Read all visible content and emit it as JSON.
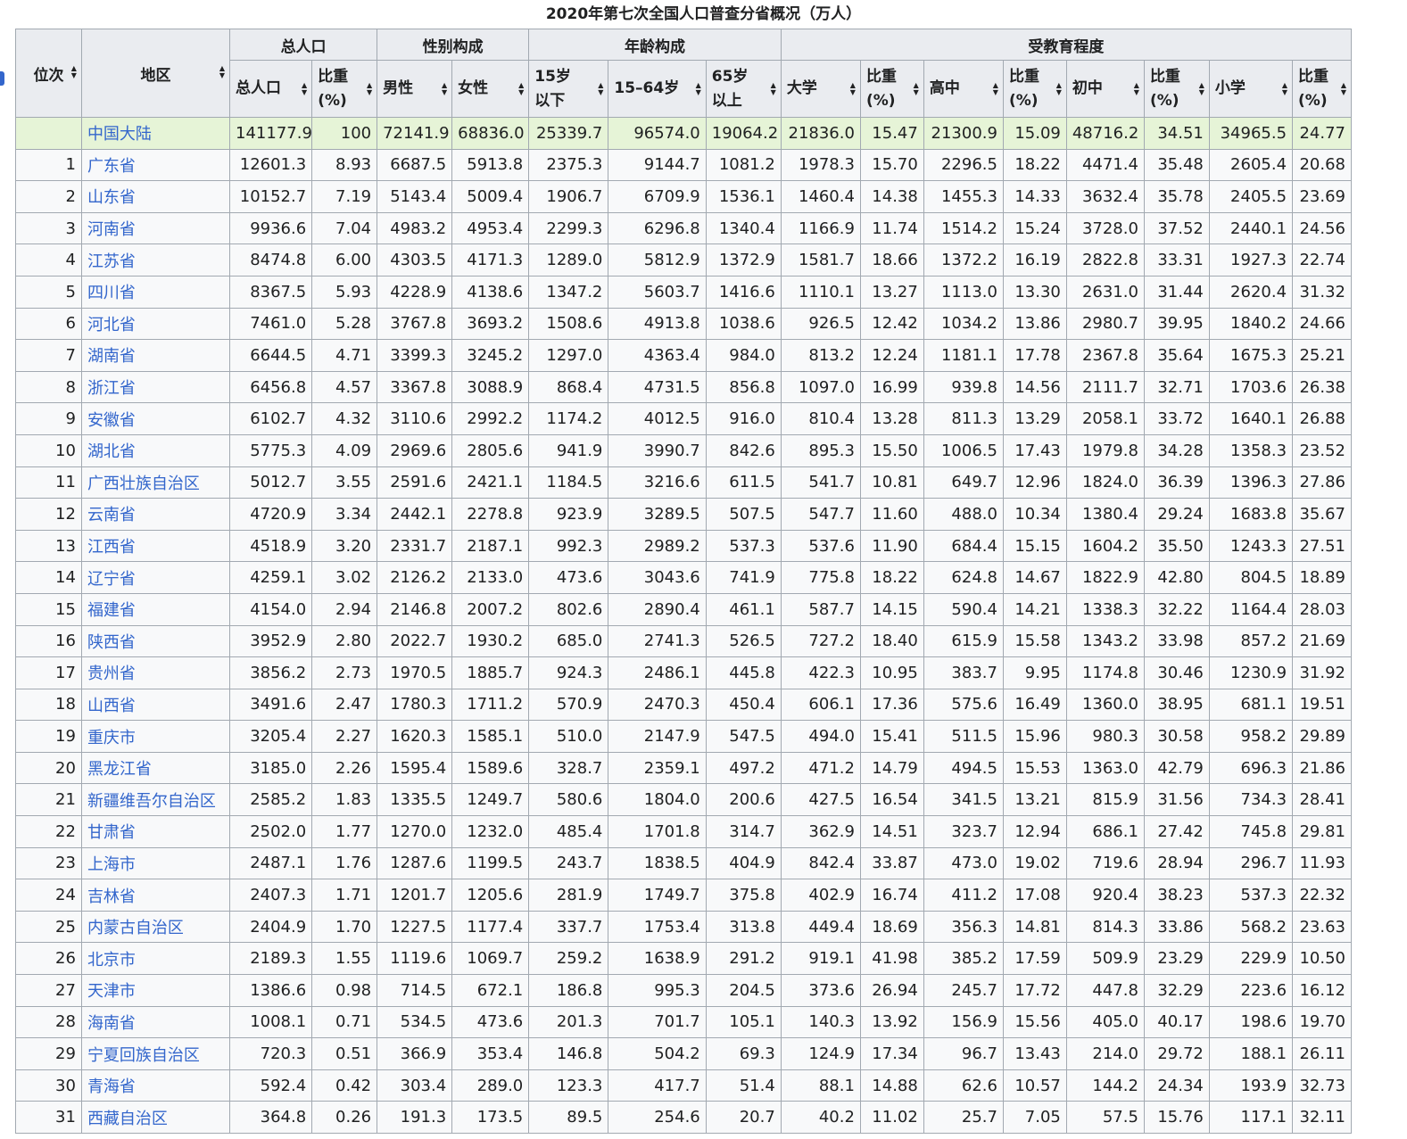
{
  "caption": "2020年第七次全国人口普查分省概况（万人）",
  "headers": {
    "rank": "位次",
    "region": "地区",
    "groups": [
      "总人口",
      "性别构成",
      "年龄构成",
      "受教育程度"
    ],
    "sub": [
      {
        "label": "总人口",
        "lines": [
          "总人口"
        ]
      },
      {
        "label": "比重 (%)",
        "lines": [
          "比重",
          "(%)"
        ]
      },
      {
        "label": "男性",
        "lines": [
          "男性"
        ]
      },
      {
        "label": "女性",
        "lines": [
          "女性"
        ]
      },
      {
        "label": "15岁 以下",
        "lines": [
          "15岁",
          "以下"
        ]
      },
      {
        "label": "15–64岁",
        "lines": [
          "15–64岁"
        ]
      },
      {
        "label": "65岁 以上",
        "lines": [
          "65岁",
          "以上"
        ]
      },
      {
        "label": "大学",
        "lines": [
          "大学"
        ]
      },
      {
        "label": "比重 (%)",
        "lines": [
          "比重",
          "(%)"
        ]
      },
      {
        "label": "高中",
        "lines": [
          "高中"
        ]
      },
      {
        "label": "比重 (%)",
        "lines": [
          "比重",
          "(%)"
        ]
      },
      {
        "label": "初中",
        "lines": [
          "初中"
        ]
      },
      {
        "label": "比重 (%)",
        "lines": [
          "比重",
          "(%)"
        ]
      },
      {
        "label": "小学",
        "lines": [
          "小学"
        ]
      },
      {
        "label": "比重 (%)",
        "lines": [
          "比重",
          "(%)"
        ]
      }
    ]
  },
  "rows": [
    {
      "rank": "",
      "region": "中国大陆",
      "values": [
        "141177.9",
        "100",
        "72141.9",
        "68836.0",
        "25339.7",
        "96574.0",
        "19064.2",
        "21836.0",
        "15.47",
        "21300.9",
        "15.09",
        "48716.2",
        "34.51",
        "34965.5",
        "24.77"
      ]
    },
    {
      "rank": "1",
      "region": "广东省",
      "values": [
        "12601.3",
        "8.93",
        "6687.5",
        "5913.8",
        "2375.3",
        "9144.7",
        "1081.2",
        "1978.3",
        "15.70",
        "2296.5",
        "18.22",
        "4471.4",
        "35.48",
        "2605.4",
        "20.68"
      ]
    },
    {
      "rank": "2",
      "region": "山东省",
      "values": [
        "10152.7",
        "7.19",
        "5143.4",
        "5009.4",
        "1906.7",
        "6709.9",
        "1536.1",
        "1460.4",
        "14.38",
        "1455.3",
        "14.33",
        "3632.4",
        "35.78",
        "2405.5",
        "23.69"
      ]
    },
    {
      "rank": "3",
      "region": "河南省",
      "values": [
        "9936.6",
        "7.04",
        "4983.2",
        "4953.4",
        "2299.3",
        "6296.8",
        "1340.4",
        "1166.9",
        "11.74",
        "1514.2",
        "15.24",
        "3728.0",
        "37.52",
        "2440.1",
        "24.56"
      ]
    },
    {
      "rank": "4",
      "region": "江苏省",
      "values": [
        "8474.8",
        "6.00",
        "4303.5",
        "4171.3",
        "1289.0",
        "5812.9",
        "1372.9",
        "1581.7",
        "18.66",
        "1372.2",
        "16.19",
        "2822.8",
        "33.31",
        "1927.3",
        "22.74"
      ]
    },
    {
      "rank": "5",
      "region": "四川省",
      "values": [
        "8367.5",
        "5.93",
        "4228.9",
        "4138.6",
        "1347.2",
        "5603.7",
        "1416.6",
        "1110.1",
        "13.27",
        "1113.0",
        "13.30",
        "2631.0",
        "31.44",
        "2620.4",
        "31.32"
      ]
    },
    {
      "rank": "6",
      "region": "河北省",
      "values": [
        "7461.0",
        "5.28",
        "3767.8",
        "3693.2",
        "1508.6",
        "4913.8",
        "1038.6",
        "926.5",
        "12.42",
        "1034.2",
        "13.86",
        "2980.7",
        "39.95",
        "1840.2",
        "24.66"
      ]
    },
    {
      "rank": "7",
      "region": "湖南省",
      "values": [
        "6644.5",
        "4.71",
        "3399.3",
        "3245.2",
        "1297.0",
        "4363.4",
        "984.0",
        "813.2",
        "12.24",
        "1181.1",
        "17.78",
        "2367.8",
        "35.64",
        "1675.3",
        "25.21"
      ]
    },
    {
      "rank": "8",
      "region": "浙江省",
      "values": [
        "6456.8",
        "4.57",
        "3367.8",
        "3088.9",
        "868.4",
        "4731.5",
        "856.8",
        "1097.0",
        "16.99",
        "939.8",
        "14.56",
        "2111.7",
        "32.71",
        "1703.6",
        "26.38"
      ]
    },
    {
      "rank": "9",
      "region": "安徽省",
      "values": [
        "6102.7",
        "4.32",
        "3110.6",
        "2992.2",
        "1174.2",
        "4012.5",
        "916.0",
        "810.4",
        "13.28",
        "811.3",
        "13.29",
        "2058.1",
        "33.72",
        "1640.1",
        "26.88"
      ]
    },
    {
      "rank": "10",
      "region": "湖北省",
      "values": [
        "5775.3",
        "4.09",
        "2969.6",
        "2805.6",
        "941.9",
        "3990.7",
        "842.6",
        "895.3",
        "15.50",
        "1006.5",
        "17.43",
        "1979.8",
        "34.28",
        "1358.3",
        "23.52"
      ]
    },
    {
      "rank": "11",
      "region": "广西壮族自治区",
      "values": [
        "5012.7",
        "3.55",
        "2591.6",
        "2421.1",
        "1184.5",
        "3216.6",
        "611.5",
        "541.7",
        "10.81",
        "649.7",
        "12.96",
        "1824.0",
        "36.39",
        "1396.3",
        "27.86"
      ]
    },
    {
      "rank": "12",
      "region": "云南省",
      "values": [
        "4720.9",
        "3.34",
        "2442.1",
        "2278.8",
        "923.9",
        "3289.5",
        "507.5",
        "547.7",
        "11.60",
        "488.0",
        "10.34",
        "1380.4",
        "29.24",
        "1683.8",
        "35.67"
      ]
    },
    {
      "rank": "13",
      "region": "江西省",
      "values": [
        "4518.9",
        "3.20",
        "2331.7",
        "2187.1",
        "992.3",
        "2989.2",
        "537.3",
        "537.6",
        "11.90",
        "684.4",
        "15.15",
        "1604.2",
        "35.50",
        "1243.3",
        "27.51"
      ]
    },
    {
      "rank": "14",
      "region": "辽宁省",
      "values": [
        "4259.1",
        "3.02",
        "2126.2",
        "2133.0",
        "473.6",
        "3043.6",
        "741.9",
        "775.8",
        "18.22",
        "624.8",
        "14.67",
        "1822.9",
        "42.80",
        "804.5",
        "18.89"
      ]
    },
    {
      "rank": "15",
      "region": "福建省",
      "values": [
        "4154.0",
        "2.94",
        "2146.8",
        "2007.2",
        "802.6",
        "2890.4",
        "461.1",
        "587.7",
        "14.15",
        "590.4",
        "14.21",
        "1338.3",
        "32.22",
        "1164.4",
        "28.03"
      ]
    },
    {
      "rank": "16",
      "region": "陕西省",
      "values": [
        "3952.9",
        "2.80",
        "2022.7",
        "1930.2",
        "685.0",
        "2741.3",
        "526.5",
        "727.2",
        "18.40",
        "615.9",
        "15.58",
        "1343.2",
        "33.98",
        "857.2",
        "21.69"
      ]
    },
    {
      "rank": "17",
      "region": "贵州省",
      "values": [
        "3856.2",
        "2.73",
        "1970.5",
        "1885.7",
        "924.3",
        "2486.1",
        "445.8",
        "422.3",
        "10.95",
        "383.7",
        "9.95",
        "1174.8",
        "30.46",
        "1230.9",
        "31.92"
      ]
    },
    {
      "rank": "18",
      "region": "山西省",
      "values": [
        "3491.6",
        "2.47",
        "1780.3",
        "1711.2",
        "570.9",
        "2470.3",
        "450.4",
        "606.1",
        "17.36",
        "575.6",
        "16.49",
        "1360.0",
        "38.95",
        "681.1",
        "19.51"
      ]
    },
    {
      "rank": "19",
      "region": "重庆市",
      "values": [
        "3205.4",
        "2.27",
        "1620.3",
        "1585.1",
        "510.0",
        "2147.9",
        "547.5",
        "494.0",
        "15.41",
        "511.5",
        "15.96",
        "980.3",
        "30.58",
        "958.2",
        "29.89"
      ]
    },
    {
      "rank": "20",
      "region": "黑龙江省",
      "values": [
        "3185.0",
        "2.26",
        "1595.4",
        "1589.6",
        "328.7",
        "2359.1",
        "497.2",
        "471.2",
        "14.79",
        "494.5",
        "15.53",
        "1363.0",
        "42.79",
        "696.3",
        "21.86"
      ]
    },
    {
      "rank": "21",
      "region": "新疆维吾尔自治区",
      "values": [
        "2585.2",
        "1.83",
        "1335.5",
        "1249.7",
        "580.6",
        "1804.0",
        "200.6",
        "427.5",
        "16.54",
        "341.5",
        "13.21",
        "815.9",
        "31.56",
        "734.3",
        "28.41"
      ]
    },
    {
      "rank": "22",
      "region": "甘肃省",
      "values": [
        "2502.0",
        "1.77",
        "1270.0",
        "1232.0",
        "485.4",
        "1701.8",
        "314.7",
        "362.9",
        "14.51",
        "323.7",
        "12.94",
        "686.1",
        "27.42",
        "745.8",
        "29.81"
      ]
    },
    {
      "rank": "23",
      "region": "上海市",
      "values": [
        "2487.1",
        "1.76",
        "1287.6",
        "1199.5",
        "243.7",
        "1838.5",
        "404.9",
        "842.4",
        "33.87",
        "473.0",
        "19.02",
        "719.6",
        "28.94",
        "296.7",
        "11.93"
      ]
    },
    {
      "rank": "24",
      "region": "吉林省",
      "values": [
        "2407.3",
        "1.71",
        "1201.7",
        "1205.6",
        "281.9",
        "1749.7",
        "375.8",
        "402.9",
        "16.74",
        "411.2",
        "17.08",
        "920.4",
        "38.23",
        "537.3",
        "22.32"
      ]
    },
    {
      "rank": "25",
      "region": "内蒙古自治区",
      "values": [
        "2404.9",
        "1.70",
        "1227.5",
        "1177.4",
        "337.7",
        "1753.4",
        "313.8",
        "449.4",
        "18.69",
        "356.3",
        "14.81",
        "814.3",
        "33.86",
        "568.2",
        "23.63"
      ]
    },
    {
      "rank": "26",
      "region": "北京市",
      "values": [
        "2189.3",
        "1.55",
        "1119.6",
        "1069.7",
        "259.2",
        "1638.9",
        "291.2",
        "919.1",
        "41.98",
        "385.2",
        "17.59",
        "509.9",
        "23.29",
        "229.9",
        "10.50"
      ]
    },
    {
      "rank": "27",
      "region": "天津市",
      "values": [
        "1386.6",
        "0.98",
        "714.5",
        "672.1",
        "186.8",
        "995.3",
        "204.5",
        "373.6",
        "26.94",
        "245.7",
        "17.72",
        "447.8",
        "32.29",
        "223.6",
        "16.12"
      ]
    },
    {
      "rank": "28",
      "region": "海南省",
      "values": [
        "1008.1",
        "0.71",
        "534.5",
        "473.6",
        "201.3",
        "701.7",
        "105.1",
        "140.3",
        "13.92",
        "156.9",
        "15.56",
        "405.0",
        "40.17",
        "198.6",
        "19.70"
      ]
    },
    {
      "rank": "29",
      "region": "宁夏回族自治区",
      "values": [
        "720.3",
        "0.51",
        "366.9",
        "353.4",
        "146.8",
        "504.2",
        "69.3",
        "124.9",
        "17.34",
        "96.7",
        "13.43",
        "214.0",
        "29.72",
        "188.1",
        "26.11"
      ]
    },
    {
      "rank": "30",
      "region": "青海省",
      "values": [
        "592.4",
        "0.42",
        "303.4",
        "289.0",
        "123.3",
        "417.7",
        "51.4",
        "88.1",
        "14.88",
        "62.6",
        "10.57",
        "144.2",
        "24.34",
        "193.9",
        "32.73"
      ]
    },
    {
      "rank": "31",
      "region": "西藏自治区",
      "values": [
        "364.8",
        "0.26",
        "191.3",
        "173.5",
        "89.5",
        "254.6",
        "20.7",
        "40.2",
        "11.02",
        "25.7",
        "7.05",
        "57.5",
        "15.76",
        "117.1",
        "32.11"
      ]
    }
  ],
  "colors": {
    "link": "#3366cc",
    "header_bg": "#eaecf0",
    "cell_bg": "#f8f9fa",
    "total_bg": "#e6f4d7",
    "border": "#a2a9b1"
  },
  "icons": {
    "sort": "sort-arrows-icon"
  }
}
